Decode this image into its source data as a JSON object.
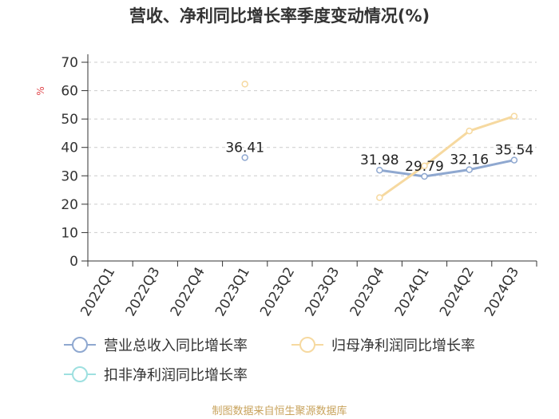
{
  "chart_data": {
    "type": "line",
    "title": "营收、净利同比增长率季度变动情况(%)",
    "ylabel": "%",
    "ylim": [
      0,
      70
    ],
    "yticks": [
      0,
      10,
      20,
      30,
      40,
      50,
      60,
      70
    ],
    "grid": true,
    "legend_position": "bottom",
    "categories": [
      "2022Q1",
      "2022Q3",
      "2022Q4",
      "2023Q1",
      "2023Q2",
      "2023Q3",
      "2023Q4",
      "2024Q1",
      "2024Q2",
      "2024Q3"
    ],
    "series": [
      {
        "name": "营业总收入同比增长率",
        "color": "#8fa8d0",
        "values": [
          null,
          null,
          null,
          36.41,
          null,
          null,
          31.98,
          29.79,
          32.16,
          35.54
        ],
        "labels": [
          "",
          "",
          "",
          "36.41",
          "",
          "",
          "31.98",
          "29.79",
          "32.16",
          "35.54"
        ]
      },
      {
        "name": "归母净利润同比增长率",
        "color": "#f6d9a0",
        "values": [
          null,
          null,
          null,
          62.3,
          null,
          null,
          22.3,
          33.5,
          45.8,
          51.0
        ],
        "labels": [
          "",
          "",
          "",
          "",
          "",
          "",
          "",
          "",
          "",
          ""
        ]
      },
      {
        "name": "扣非净利润同比增长率",
        "color": "#9ee0e0",
        "values": [
          null,
          null,
          null,
          null,
          null,
          null,
          null,
          null,
          null,
          null
        ],
        "labels": [
          "",
          "",
          "",
          "",
          "",
          "",
          "",
          "",
          "",
          ""
        ]
      }
    ]
  },
  "footer": "制图数据来自恒生聚源数据库"
}
